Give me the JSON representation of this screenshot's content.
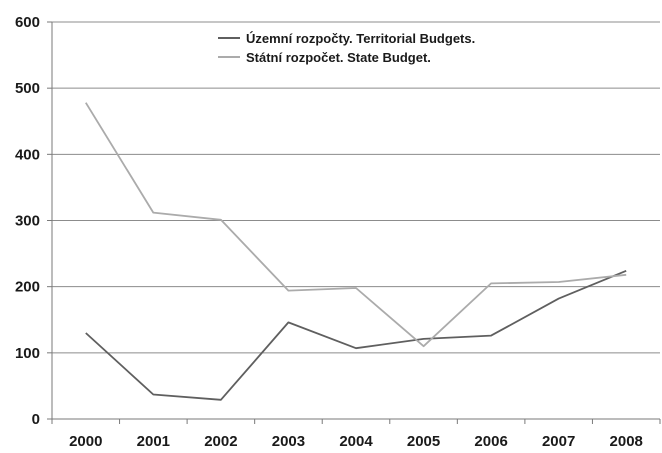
{
  "chart_data": {
    "type": "line",
    "title": "",
    "xlabel": "",
    "ylabel": "",
    "x": [
      "2000",
      "2001",
      "2002",
      "2003",
      "2004",
      "2005",
      "2006",
      "2007",
      "2008"
    ],
    "ylim": [
      0,
      600
    ],
    "yticks": [
      "0",
      "100",
      "200",
      "300",
      "400",
      "500",
      "600"
    ],
    "grid": "horizontal",
    "legend_position": "top-center",
    "series": [
      {
        "name": "Územní rozpočty. Territorial Budgets.",
        "color": "#5f5f5f",
        "values": [
          130,
          37,
          29,
          146,
          107,
          121,
          126,
          182,
          224
        ]
      },
      {
        "name": "Státní rozpočet. State Budget.",
        "color": "#ababab",
        "values": [
          478,
          312,
          301,
          194,
          198,
          110,
          205,
          207,
          218
        ]
      }
    ]
  }
}
